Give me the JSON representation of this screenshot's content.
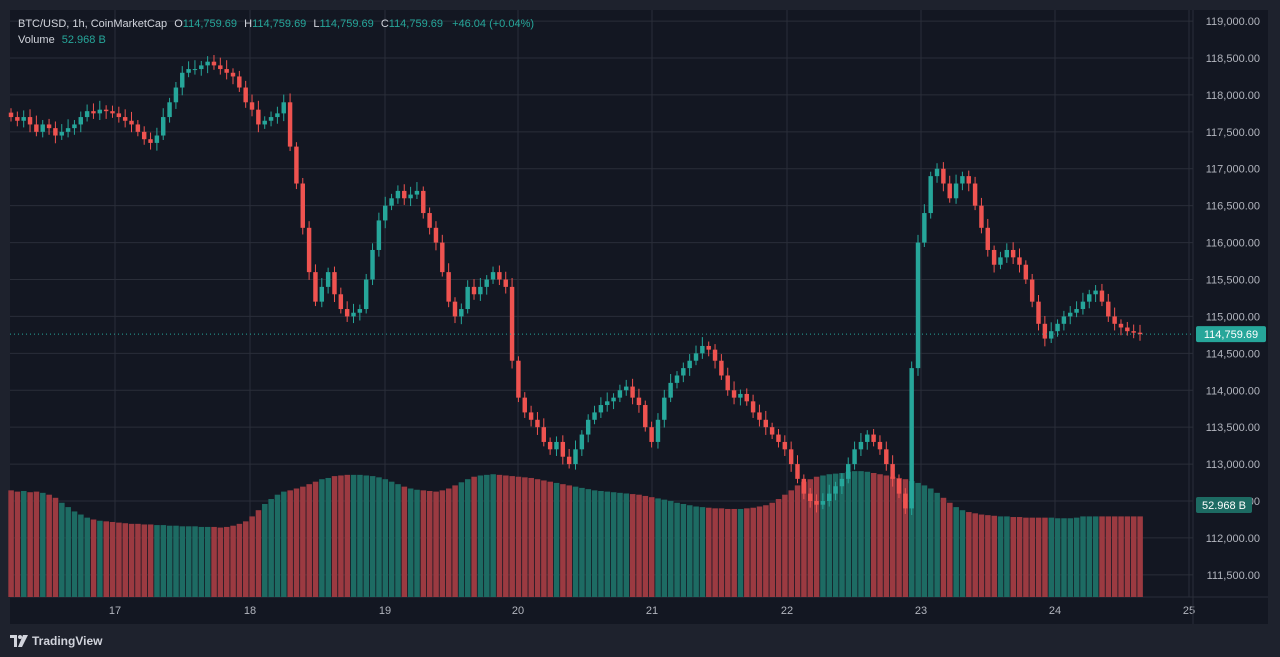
{
  "legend": {
    "symbol": "BTC/USD, 1h, CoinMarketCap",
    "o_label": "O",
    "o_value": "114,759.69",
    "h_label": "H",
    "h_value": "114,759.69",
    "l_label": "L",
    "l_value": "114,759.69",
    "c_label": "C",
    "c_value": "114,759.69",
    "change": "+46.04 (+0.04%)",
    "volume_label": "Volume",
    "volume_value": "52.968 B"
  },
  "footer": {
    "brand": "TradingView"
  },
  "colors": {
    "up": "#26a69a",
    "down": "#ef5350",
    "up_vol": "#1d6b63",
    "down_vol": "#9b3a41",
    "bg": "#131722",
    "grid": "#2a2e39",
    "text": "#b2b5be"
  },
  "chart_data": {
    "type": "candlestick",
    "symbol": "BTC/USD",
    "interval": "1h",
    "ylim": [
      111200,
      119150
    ],
    "y_ticks": [
      "119,000.00",
      "118,500.00",
      "118,000.00",
      "117,500.00",
      "117,000.00",
      "116,500.00",
      "116,000.00",
      "115,500.00",
      "115,000.00",
      "114,500.00",
      "114,000.00",
      "113,500.00",
      "113,000.00",
      "112,500.00",
      "112,000.00",
      "111,500.00"
    ],
    "y_tick_values": [
      119000,
      118500,
      118000,
      117500,
      117000,
      116500,
      116000,
      115500,
      115000,
      114500,
      114000,
      113500,
      113000,
      112500,
      112000,
      111500
    ],
    "x_ticks": [
      "17",
      "18",
      "19",
      "20",
      "21",
      "22",
      "23",
      "24",
      "25"
    ],
    "last_price_label": "114,759.69",
    "last_price": 114759.69,
    "volume_label": "52.968 B",
    "close_series": [
      117700,
      117650,
      117700,
      117600,
      117500,
      117600,
      117550,
      117450,
      117500,
      117550,
      117600,
      117700,
      117780,
      117750,
      117800,
      117780,
      117750,
      117700,
      117650,
      117600,
      117500,
      117400,
      117350,
      117450,
      117700,
      117900,
      118100,
      118300,
      118350,
      118350,
      118400,
      118450,
      118400,
      118350,
      118300,
      118250,
      118100,
      117900,
      117800,
      117600,
      117650,
      117700,
      117750,
      117900,
      117300,
      116800,
      116200,
      115600,
      115200,
      115400,
      115600,
      115300,
      115100,
      115000,
      115050,
      115100,
      115500,
      115900,
      116300,
      116500,
      116600,
      116700,
      116600,
      116650,
      116700,
      116400,
      116200,
      116000,
      115600,
      115200,
      115000,
      115100,
      115400,
      115300,
      115400,
      115500,
      115600,
      115500,
      115400,
      114400,
      113900,
      113700,
      113600,
      113500,
      113300,
      113200,
      113300,
      113100,
      113000,
      113200,
      113400,
      113600,
      113700,
      113800,
      113850,
      113900,
      114000,
      114050,
      113900,
      113800,
      113500,
      113300,
      113600,
      113900,
      114100,
      114200,
      114300,
      114400,
      114500,
      114600,
      114550,
      114400,
      114200,
      114000,
      113900,
      113950,
      113850,
      113700,
      113600,
      113500,
      113400,
      113300,
      113200,
      113000,
      112800,
      112600,
      112500,
      112450,
      112500,
      112600,
      112700,
      112800,
      113000,
      113200,
      113300,
      113400,
      113300,
      113200,
      113000,
      112800,
      112600,
      112400,
      114300,
      116000,
      116400,
      116900,
      117000,
      116800,
      116600,
      116800,
      116900,
      116800,
      116500,
      116200,
      115900,
      115700,
      115800,
      115900,
      115800,
      115700,
      115500,
      115200,
      114900,
      114700,
      114800,
      114900,
      115000,
      115050,
      115100,
      115200,
      115300,
      115350,
      115200,
      115000,
      114900,
      114850,
      114800,
      114780,
      114759.69
    ],
    "volume_series": [
      "1.72",
      "1.70",
      "1.71",
      "1.69",
      "1.70",
      "1.68",
      "1.65",
      "1.60",
      "1.52",
      "1.45",
      "1.38",
      "1.33",
      "1.28",
      "1.25",
      "1.23",
      "1.22",
      "1.21",
      "1.20",
      "1.19",
      "1.18",
      "1.18",
      "1.17",
      "1.17",
      "1.16",
      "1.16",
      "1.15",
      "1.15",
      "1.14",
      "1.14",
      "1.14",
      "1.13",
      "1.13",
      "1.13",
      "1.12",
      "1.13",
      "1.15",
      "1.18",
      "1.22",
      "1.30",
      "1.40",
      "1.50",
      "1.58",
      "1.65",
      "1.70",
      "1.72",
      "1.75",
      "1.78",
      "1.82",
      "1.86",
      "1.90",
      "1.92",
      "1.95",
      "1.96",
      "1.97",
      "1.97",
      "1.97",
      "1.96",
      "1.95",
      "1.93",
      "1.90",
      "1.86",
      "1.82",
      "1.78",
      "1.75",
      "1.73",
      "1.72",
      "1.71",
      "1.70",
      "1.72",
      "1.75",
      "1.80",
      "1.85",
      "1.90",
      "1.94",
      "1.96",
      "1.97",
      "1.98",
      "1.97",
      "1.96",
      "1.95",
      "1.94",
      "1.93",
      "1.92",
      "1.90",
      "1.88",
      "1.86",
      "1.84",
      "1.82",
      "1.80",
      "1.78",
      "1.76",
      "1.74",
      "1.72",
      "1.71",
      "1.70",
      "1.69",
      "1.68",
      "1.67",
      "1.66",
      "1.65",
      "1.63",
      "1.61",
      "1.59",
      "1.57",
      "1.55",
      "1.52",
      "1.50",
      "1.48",
      "1.46",
      "1.45",
      "1.44",
      "1.43",
      "1.43",
      "1.42",
      "1.42",
      "1.42",
      "1.43",
      "1.44",
      "1.46",
      "1.48",
      "1.52",
      "1.58",
      "1.65",
      "1.72",
      "1.80",
      "1.86",
      "1.90",
      "1.94",
      "1.96",
      "1.98",
      "1.99",
      "2.00",
      "2.02",
      "2.03",
      "2.03",
      "2.02",
      "2.00",
      "1.98",
      "1.96",
      "1.94",
      "1.92",
      "1.90",
      "1.87",
      "1.84",
      "1.80",
      "1.75",
      "1.68",
      "1.60",
      "1.52",
      "1.45",
      "1.40",
      "1.37",
      "1.35",
      "1.33",
      "1.32",
      "1.31",
      "1.30",
      "1.30",
      "1.29",
      "1.29",
      "1.28",
      "1.28",
      "1.28",
      "1.28",
      "1.28",
      "1.27",
      "1.27",
      "1.27",
      "1.28"
    ]
  }
}
